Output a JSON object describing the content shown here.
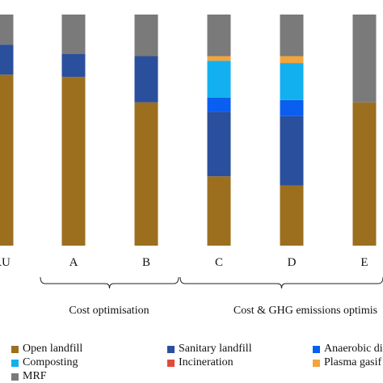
{
  "chart_data": {
    "type": "bar",
    "stacked": true,
    "normalized": true,
    "categories": [
      "BAU",
      "A",
      "B",
      "C",
      "D",
      "E"
    ],
    "visible_tick_labels": [
      "AU",
      "A",
      "B",
      "C",
      "D",
      "E"
    ],
    "ylim": [
      0,
      100
    ],
    "grid": false,
    "groups": [
      {
        "label": "Cost optimisation",
        "from": "A",
        "to": "B"
      },
      {
        "label": "Cost & GHG emissions optimis",
        "from": "C",
        "to": "E"
      }
    ],
    "series": [
      {
        "name": "Open landfill",
        "color": "#9c6f1e",
        "values": [
          74,
          73,
          62,
          30,
          26,
          62
        ]
      },
      {
        "name": "Sanitary landfill",
        "color": "#2a4f9c",
        "values": [
          13,
          10,
          20,
          28,
          30,
          0
        ]
      },
      {
        "name": "Anaerobic di",
        "color": "#0a5ef0",
        "values": [
          0,
          0,
          0,
          6,
          7,
          0
        ]
      },
      {
        "name": "Composting",
        "color": "#12b0ee",
        "values": [
          0,
          0,
          0,
          16,
          16,
          0
        ]
      },
      {
        "name": "Incineration",
        "color": "#e34a3a",
        "values": [
          0,
          0,
          0,
          0,
          0,
          0
        ]
      },
      {
        "name": "Plasma gasif",
        "color": "#f3a43c",
        "values": [
          0,
          0,
          0,
          2,
          3,
          0
        ]
      },
      {
        "name": "MRF",
        "color": "#7a7a7a",
        "values": [
          13,
          17,
          18,
          18,
          18,
          38
        ]
      }
    ]
  }
}
